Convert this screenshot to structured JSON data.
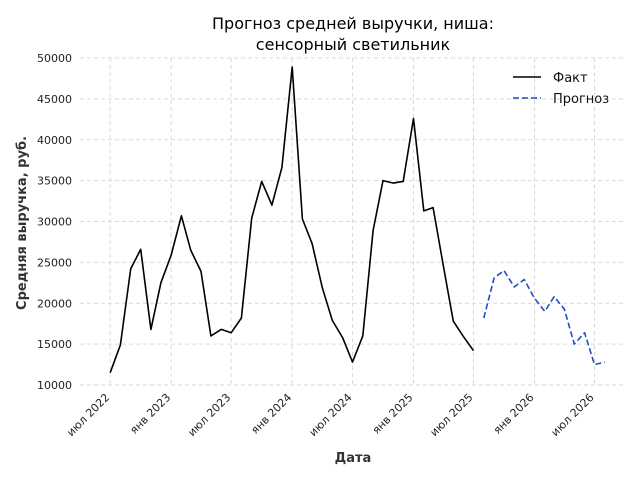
{
  "chart_data": {
    "type": "line",
    "title": [
      "Прогноз средней выручки, ниша:",
      "сенсорный светильник"
    ],
    "xlabel": "Дата",
    "ylabel": "Средняя выручка, руб.",
    "ylim": [
      10000,
      50000
    ],
    "yticks": [
      10000,
      15000,
      20000,
      25000,
      30000,
      35000,
      40000,
      45000,
      50000
    ],
    "yticks_labels": [
      "10000",
      "15000",
      "20000",
      "25000",
      "30000",
      "35000",
      "40000",
      "45000",
      "50000"
    ],
    "xlim": [
      "2022-04-01",
      "2026-10-01"
    ],
    "xticks": [
      "2022-07-01",
      "2023-01-01",
      "2023-07-01",
      "2024-01-01",
      "2024-07-01",
      "2025-01-01",
      "2025-07-01",
      "2026-01-01",
      "2026-07-01"
    ],
    "xticks_labels": [
      "июл 2022",
      "янв 2023",
      "июл 2023",
      "янв 2024",
      "июл 2024",
      "янв 2025",
      "июл 2025",
      "янв 2026",
      "июл 2026"
    ],
    "grid": true,
    "legend_position": "top-right",
    "colors": {
      "fact": "#000000",
      "forecast": "#1f4fbf",
      "grid": "#d9d9d9"
    },
    "series": [
      {
        "name": "Факт",
        "style": "solid",
        "x": [
          "2022-07-01",
          "2022-08-01",
          "2022-09-01",
          "2022-10-01",
          "2022-11-01",
          "2022-12-01",
          "2023-01-01",
          "2023-02-01",
          "2023-03-01",
          "2023-04-01",
          "2023-05-01",
          "2023-06-01",
          "2023-07-01",
          "2023-08-01",
          "2023-09-01",
          "2023-10-01",
          "2023-11-01",
          "2023-12-01",
          "2024-01-01",
          "2024-02-01",
          "2024-03-01",
          "2024-04-01",
          "2024-05-01",
          "2024-06-01",
          "2024-07-01",
          "2024-08-01",
          "2024-09-01",
          "2024-10-01",
          "2024-11-01",
          "2024-12-01",
          "2025-01-01",
          "2025-02-01",
          "2025-03-01",
          "2025-04-01",
          "2025-05-01",
          "2025-06-01",
          "2025-07-01"
        ],
        "y": [
          11500,
          14900,
          24200,
          26600,
          16800,
          22500,
          25900,
          30700,
          26500,
          23900,
          16000,
          16800,
          16400,
          18200,
          30400,
          34900,
          32000,
          36600,
          48900,
          30300,
          27300,
          21900,
          17900,
          15800,
          12800,
          16000,
          28900,
          35000,
          34700,
          34900,
          42600,
          31300,
          31700,
          24600,
          17800,
          15900,
          14200
        ]
      },
      {
        "name": "Прогноз",
        "style": "dashed",
        "x": [
          "2025-08-01",
          "2025-09-01",
          "2025-10-01",
          "2025-11-01",
          "2025-12-01",
          "2026-01-01",
          "2026-02-01",
          "2026-03-01",
          "2026-04-01",
          "2026-05-01",
          "2026-06-01",
          "2026-07-01",
          "2026-08-01"
        ],
        "y": [
          18200,
          23100,
          24000,
          22000,
          22900,
          20600,
          19000,
          20800,
          19300,
          15000,
          16400,
          12500,
          12800
        ]
      }
    ]
  }
}
